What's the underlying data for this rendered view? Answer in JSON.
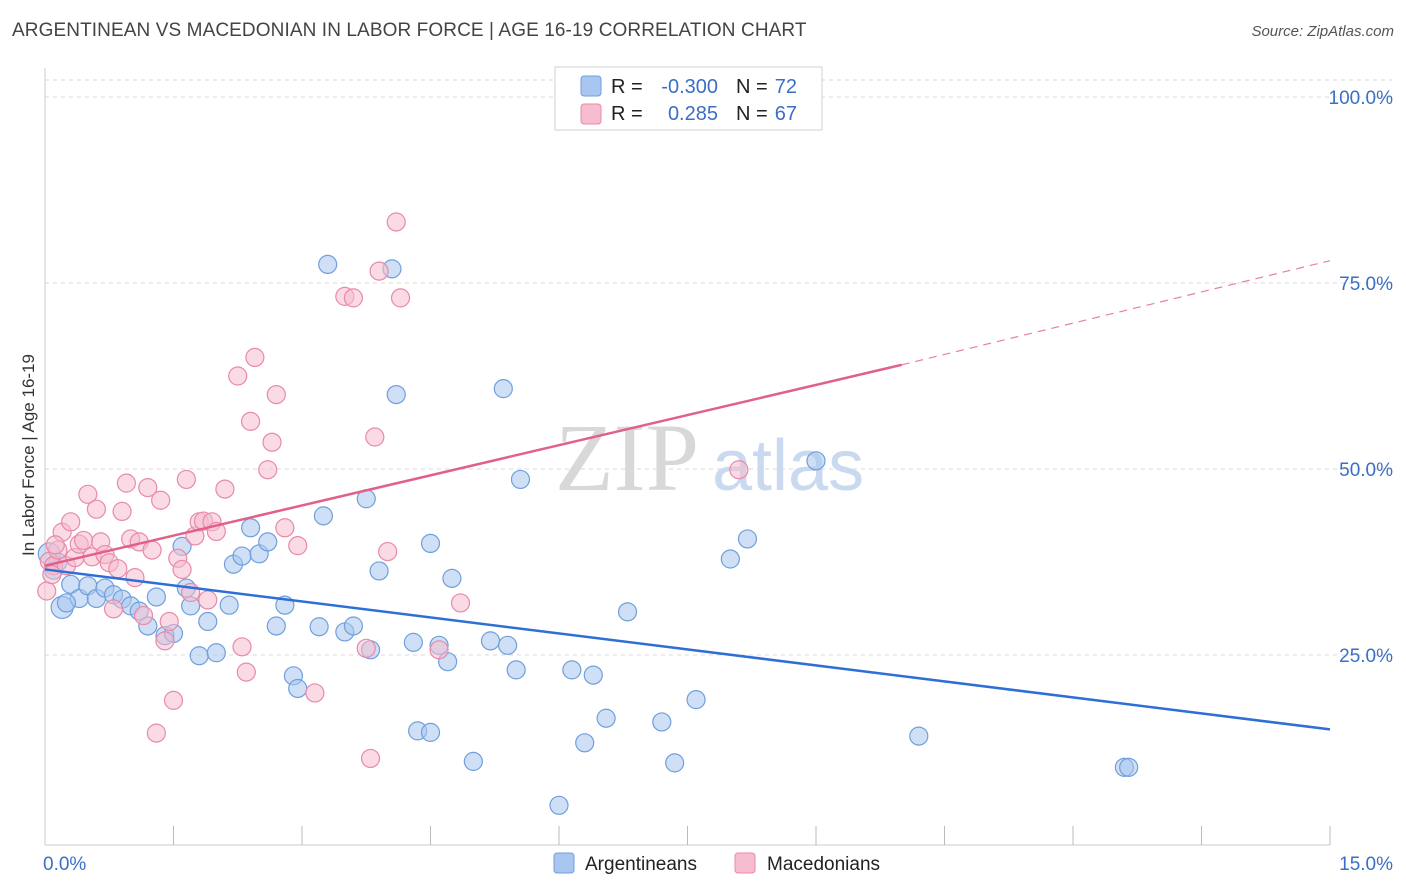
{
  "title": "ARGENTINEAN VS MACEDONIAN IN LABOR FORCE | AGE 16-19 CORRELATION CHART",
  "source": "Source: ZipAtlas.com",
  "watermark": {
    "zip": "ZIP",
    "atlas": "atlas"
  },
  "colors": {
    "blue_fill": "#a8c6ef",
    "blue_stroke": "#6f9fdc",
    "blue_line": "#2d6fd6",
    "pink_fill": "#f6bcd0",
    "pink_stroke": "#e88aa8",
    "pink_line": "#e0608a",
    "grid": "#d9d9d9",
    "axis_label": "#3b6fc4"
  },
  "legend": {
    "rows": [
      {
        "r_label": "R =",
        "r_value": "-0.300",
        "n_label": "N =",
        "n_value": "72"
      },
      {
        "r_label": "R =",
        "r_value": "0.285",
        "n_label": "N =",
        "n_value": "67"
      }
    ]
  },
  "bottom_legend": [
    "Argentineans",
    "Macedonians"
  ],
  "chart_data": {
    "type": "scatter",
    "title": "ARGENTINEAN VS MACEDONIAN IN LABOR FORCE | AGE 16-19 CORRELATION CHART",
    "xlabel": "",
    "ylabel": "In Labor Force | Age 16-19",
    "xlim": [
      0,
      15
    ],
    "ylim": [
      0,
      105
    ],
    "x_tick_labels": [
      "0.0%",
      "15.0%"
    ],
    "y_ticks": [
      25,
      50,
      75,
      100
    ],
    "y_tick_labels": [
      "25.0%",
      "50.0%",
      "75.0%",
      "100.0%"
    ],
    "grid": true,
    "series": [
      {
        "name": "Argentineans",
        "r": -0.3,
        "n": 72,
        "trend": {
          "x0": 0,
          "y0": 36.5,
          "x1": 15,
          "y1": 15.0
        },
        "points": [
          [
            0.05,
            38.6
          ],
          [
            0.1,
            36.4
          ],
          [
            0.15,
            37.5
          ],
          [
            0.2,
            31.4
          ],
          [
            0.3,
            34.5
          ],
          [
            0.4,
            32.6
          ],
          [
            0.5,
            34.3
          ],
          [
            0.6,
            32.6
          ],
          [
            0.7,
            34.0
          ],
          [
            0.8,
            33.1
          ],
          [
            0.9,
            32.5
          ],
          [
            1.0,
            31.6
          ],
          [
            1.1,
            30.9
          ],
          [
            1.2,
            28.9
          ],
          [
            1.3,
            32.8
          ],
          [
            1.4,
            27.6
          ],
          [
            1.5,
            27.9
          ],
          [
            1.6,
            39.6
          ],
          [
            1.65,
            34.0
          ],
          [
            1.7,
            31.6
          ],
          [
            1.8,
            24.9
          ],
          [
            1.9,
            29.5
          ],
          [
            2.0,
            25.3
          ],
          [
            2.15,
            31.7
          ],
          [
            2.2,
            37.2
          ],
          [
            2.3,
            38.3
          ],
          [
            2.4,
            42.1
          ],
          [
            2.5,
            38.6
          ],
          [
            2.6,
            40.2
          ],
          [
            2.7,
            28.9
          ],
          [
            2.8,
            31.7
          ],
          [
            2.9,
            22.2
          ],
          [
            2.95,
            20.5
          ],
          [
            3.2,
            28.8
          ],
          [
            3.25,
            43.7
          ],
          [
            3.3,
            77.5
          ],
          [
            3.5,
            28.1
          ],
          [
            3.6,
            28.9
          ],
          [
            3.8,
            25.7
          ],
          [
            3.75,
            46.0
          ],
          [
            3.9,
            36.3
          ],
          [
            4.05,
            76.9
          ],
          [
            4.1,
            60.0
          ],
          [
            4.3,
            26.7
          ],
          [
            4.35,
            14.8
          ],
          [
            4.5,
            14.6
          ],
          [
            4.5,
            40.0
          ],
          [
            4.6,
            26.3
          ],
          [
            4.7,
            24.1
          ],
          [
            4.75,
            35.3
          ],
          [
            5.0,
            10.7
          ],
          [
            5.2,
            26.9
          ],
          [
            5.35,
            60.8
          ],
          [
            5.4,
            26.3
          ],
          [
            5.5,
            23.0
          ],
          [
            5.55,
            48.6
          ],
          [
            6.0,
            4.8
          ],
          [
            6.15,
            23.0
          ],
          [
            6.3,
            13.2
          ],
          [
            6.4,
            22.3
          ],
          [
            6.55,
            16.5
          ],
          [
            6.8,
            30.8
          ],
          [
            7.2,
            16.0
          ],
          [
            7.35,
            10.5
          ],
          [
            7.6,
            19.0
          ],
          [
            8.0,
            37.9
          ],
          [
            8.2,
            40.6
          ],
          [
            9.0,
            51.1
          ],
          [
            10.2,
            14.1
          ],
          [
            12.6,
            9.9
          ],
          [
            12.65,
            9.9
          ],
          [
            0.25,
            32.0
          ]
        ]
      },
      {
        "name": "Macedonians",
        "r": 0.285,
        "n": 67,
        "trend": {
          "x0": 0,
          "y0": 37.0,
          "x1": 10.0,
          "y1": 64.0,
          "dashed_to_x": 15,
          "dashed_to_y": 78.0
        },
        "points": [
          [
            0.02,
            33.6
          ],
          [
            0.05,
            37.6
          ],
          [
            0.1,
            37.0
          ],
          [
            0.15,
            39.1
          ],
          [
            0.2,
            41.5
          ],
          [
            0.25,
            37.0
          ],
          [
            0.3,
            42.9
          ],
          [
            0.35,
            38.1
          ],
          [
            0.4,
            39.9
          ],
          [
            0.45,
            40.4
          ],
          [
            0.5,
            46.6
          ],
          [
            0.55,
            38.2
          ],
          [
            0.6,
            44.6
          ],
          [
            0.65,
            40.2
          ],
          [
            0.7,
            38.5
          ],
          [
            0.75,
            37.4
          ],
          [
            0.8,
            31.2
          ],
          [
            0.85,
            36.6
          ],
          [
            0.9,
            44.3
          ],
          [
            0.95,
            48.1
          ],
          [
            1.0,
            40.6
          ],
          [
            1.05,
            35.4
          ],
          [
            1.1,
            40.2
          ],
          [
            1.15,
            30.3
          ],
          [
            1.2,
            47.5
          ],
          [
            1.25,
            39.1
          ],
          [
            1.3,
            14.5
          ],
          [
            1.35,
            45.8
          ],
          [
            1.4,
            26.9
          ],
          [
            1.45,
            29.5
          ],
          [
            1.5,
            18.9
          ],
          [
            1.55,
            38.0
          ],
          [
            1.6,
            36.5
          ],
          [
            1.65,
            48.6
          ],
          [
            1.7,
            33.4
          ],
          [
            1.75,
            41.0
          ],
          [
            1.8,
            42.9
          ],
          [
            1.85,
            43.0
          ],
          [
            1.9,
            32.4
          ],
          [
            1.95,
            42.9
          ],
          [
            2.0,
            41.6
          ],
          [
            2.1,
            47.3
          ],
          [
            2.25,
            62.5
          ],
          [
            2.3,
            26.1
          ],
          [
            2.35,
            22.7
          ],
          [
            2.4,
            56.4
          ],
          [
            2.45,
            65.0
          ],
          [
            2.6,
            49.9
          ],
          [
            2.65,
            53.6
          ],
          [
            2.7,
            60.0
          ],
          [
            2.8,
            42.1
          ],
          [
            2.95,
            39.7
          ],
          [
            3.15,
            19.9
          ],
          [
            3.5,
            73.2
          ],
          [
            3.6,
            73.0
          ],
          [
            3.75,
            25.9
          ],
          [
            3.8,
            11.1
          ],
          [
            3.9,
            76.6
          ],
          [
            3.85,
            54.3
          ],
          [
            4.0,
            38.9
          ],
          [
            4.1,
            83.2
          ],
          [
            4.15,
            73.0
          ],
          [
            4.6,
            25.7
          ],
          [
            4.85,
            32.0
          ],
          [
            8.1,
            49.9
          ],
          [
            0.08,
            35.8
          ],
          [
            0.12,
            39.8
          ]
        ]
      }
    ]
  }
}
